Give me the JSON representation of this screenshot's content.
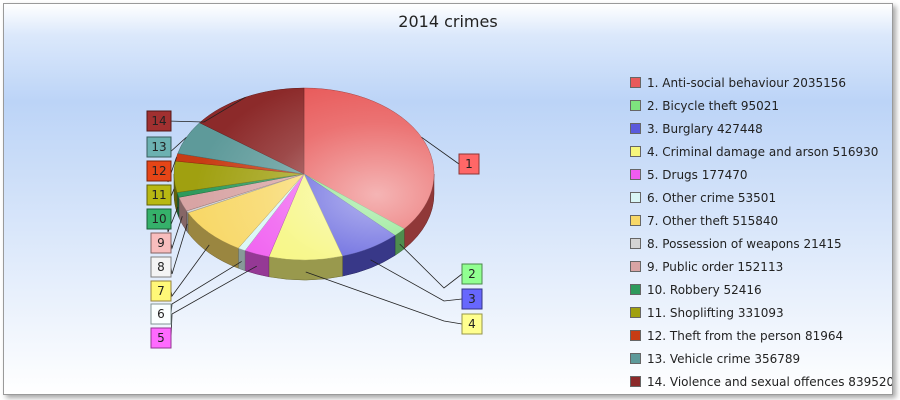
{
  "chart_data": {
    "type": "pie",
    "title": "2014 crimes",
    "slices": [
      {
        "label": "1. Anti-social behaviour 2035156",
        "short": "1",
        "value": 2035156,
        "color": "#e85a5a"
      },
      {
        "label": "2. Bicycle theft 95021",
        "short": "2",
        "value": 95021,
        "color": "#7ee37e"
      },
      {
        "label": "3. Burglary 427448",
        "short": "3",
        "value": 427448,
        "color": "#5a5adc"
      },
      {
        "label": "4. Criminal damage and arson 516930",
        "short": "4",
        "value": 516930,
        "color": "#f6f67c"
      },
      {
        "label": "5. Drugs 177470",
        "short": "5",
        "value": 177470,
        "color": "#f05cf0"
      },
      {
        "label": "6. Other crime 53501",
        "short": "6",
        "value": 53501,
        "color": "#d9f6f6"
      },
      {
        "label": "7. Other theft 515840",
        "short": "7",
        "value": 515840,
        "color": "#f8d868"
      },
      {
        "label": "8. Possession of weapons 21415",
        "short": "8",
        "value": 21415,
        "color": "#d4d4d4"
      },
      {
        "label": "9. Public order 152113",
        "short": "9",
        "value": 152113,
        "color": "#d8a4a4"
      },
      {
        "label": "10. Robbery 52416",
        "short": "10",
        "value": 52416,
        "color": "#2e9a5c"
      },
      {
        "label": "11. Shoplifting 331093",
        "short": "11",
        "value": 331093,
        "color": "#a0a010"
      },
      {
        "label": "12. Theft from the person 81964",
        "short": "12",
        "value": 81964,
        "color": "#c83c14"
      },
      {
        "label": "13. Vehicle crime 356789",
        "short": "13",
        "value": 356789,
        "color": "#5e9a9a"
      },
      {
        "label": "14. Violence and sexual offences 839520",
        "short": "14",
        "value": 839520,
        "color": "#8c2a2a"
      }
    ]
  }
}
